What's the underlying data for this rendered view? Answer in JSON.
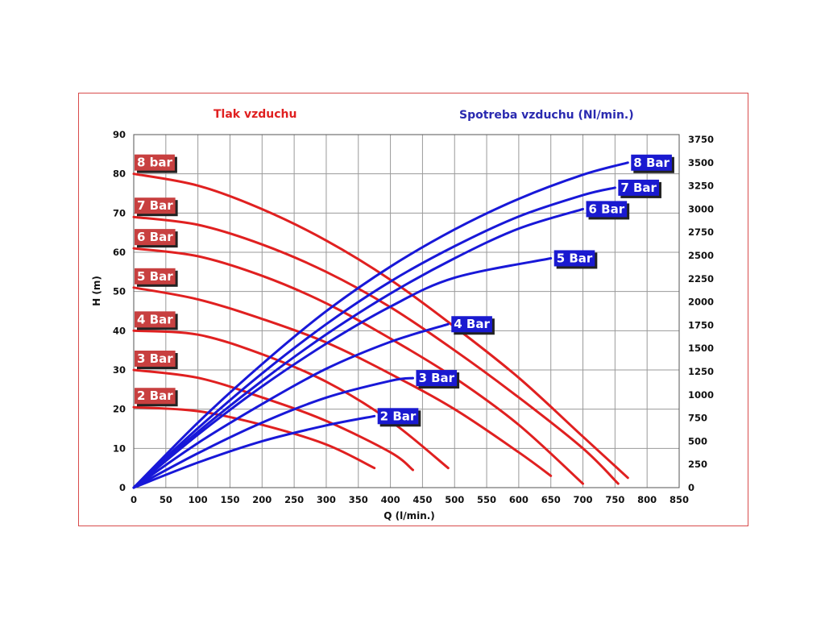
{
  "chart_data": {
    "type": "line",
    "title_left": "Tlak vzduchu",
    "title_right": "Spotreba vzduchu (Nl/min.)",
    "xlabel": "Q (l/min.)",
    "ylabel_left": "H (m)",
    "xlim": [
      0,
      850
    ],
    "ylim_left": [
      0,
      90
    ],
    "ylim_right": [
      0,
      3750
    ],
    "x_ticks": [
      0,
      50,
      100,
      150,
      200,
      250,
      300,
      350,
      400,
      450,
      500,
      550,
      600,
      650,
      700,
      750,
      800,
      850
    ],
    "y_left_ticks": [
      0,
      10,
      20,
      30,
      40,
      50,
      60,
      70,
      80,
      90
    ],
    "y_right_ticks": [
      0,
      250,
      500,
      750,
      1000,
      1250,
      1500,
      1750,
      2000,
      2250,
      2500,
      2750,
      3000,
      3250,
      3500,
      3750
    ],
    "grid": true,
    "colors": {
      "pressure": "#e02020",
      "consumption": "#1818d8",
      "pressure_label_bg": "#c84040",
      "consumption_label_bg": "#1a1ad0"
    },
    "pressure_series": [
      {
        "name": "8 bar",
        "x": [
          0,
          100,
          200,
          300,
          400,
          500,
          600,
          700,
          770
        ],
        "y": [
          80,
          77,
          71,
          63,
          53,
          41,
          28,
          13,
          2.5
        ]
      },
      {
        "name": "7 Bar",
        "x": [
          0,
          100,
          200,
          300,
          400,
          500,
          600,
          700,
          755
        ],
        "y": [
          69,
          67,
          62,
          55,
          46,
          35,
          23,
          10,
          1
        ]
      },
      {
        "name": "6 Bar",
        "x": [
          0,
          100,
          200,
          300,
          400,
          500,
          600,
          700
        ],
        "y": [
          61,
          59,
          54,
          47,
          38,
          28,
          16,
          1
        ]
      },
      {
        "name": "5 Bar",
        "x": [
          0,
          100,
          200,
          300,
          400,
          500,
          600,
          650
        ],
        "y": [
          51,
          48,
          43,
          37,
          29,
          20,
          9,
          3
        ]
      },
      {
        "name": "4 Bar",
        "x": [
          0,
          100,
          200,
          300,
          400,
          490
        ],
        "y": [
          40,
          39,
          34,
          27,
          17,
          5
        ]
      },
      {
        "name": "3 Bar",
        "x": [
          0,
          100,
          200,
          300,
          400,
          435
        ],
        "y": [
          30,
          28,
          23,
          17,
          9,
          4.5
        ]
      },
      {
        "name": "2 Bar",
        "x": [
          0,
          100,
          200,
          300,
          375
        ],
        "y": [
          20.5,
          19.5,
          16,
          11,
          5
        ]
      }
    ],
    "consumption_series": [
      {
        "name": "8 Bar",
        "x": [
          0,
          100,
          200,
          300,
          400,
          500,
          600,
          700,
          770
        ],
        "y": [
          0,
          700,
          1330,
          1900,
          2380,
          2780,
          3110,
          3370,
          3500
        ]
      },
      {
        "name": "7 Bar",
        "x": [
          0,
          100,
          200,
          300,
          400,
          500,
          600,
          700,
          750
        ],
        "y": [
          0,
          640,
          1230,
          1760,
          2220,
          2600,
          2920,
          3150,
          3230
        ]
      },
      {
        "name": "6 Bar",
        "x": [
          0,
          100,
          200,
          300,
          400,
          500,
          600,
          700
        ],
        "y": [
          0,
          600,
          1150,
          1650,
          2090,
          2470,
          2790,
          3000
        ]
      },
      {
        "name": "5 Bar",
        "x": [
          0,
          100,
          200,
          300,
          400,
          500,
          650
        ],
        "y": [
          0,
          570,
          1090,
          1550,
          1950,
          2260,
          2470
        ]
      },
      {
        "name": "4 Bar",
        "x": [
          0,
          100,
          200,
          300,
          400,
          490
        ],
        "y": [
          0,
          480,
          900,
          1280,
          1570,
          1760
        ]
      },
      {
        "name": "3 Bar",
        "x": [
          0,
          100,
          200,
          300,
          400,
          435
        ],
        "y": [
          0,
          370,
          700,
          970,
          1150,
          1180
        ]
      },
      {
        "name": "2 Bar",
        "x": [
          0,
          100,
          200,
          300,
          375
        ],
        "y": [
          0,
          270,
          500,
          670,
          770
        ]
      }
    ]
  }
}
